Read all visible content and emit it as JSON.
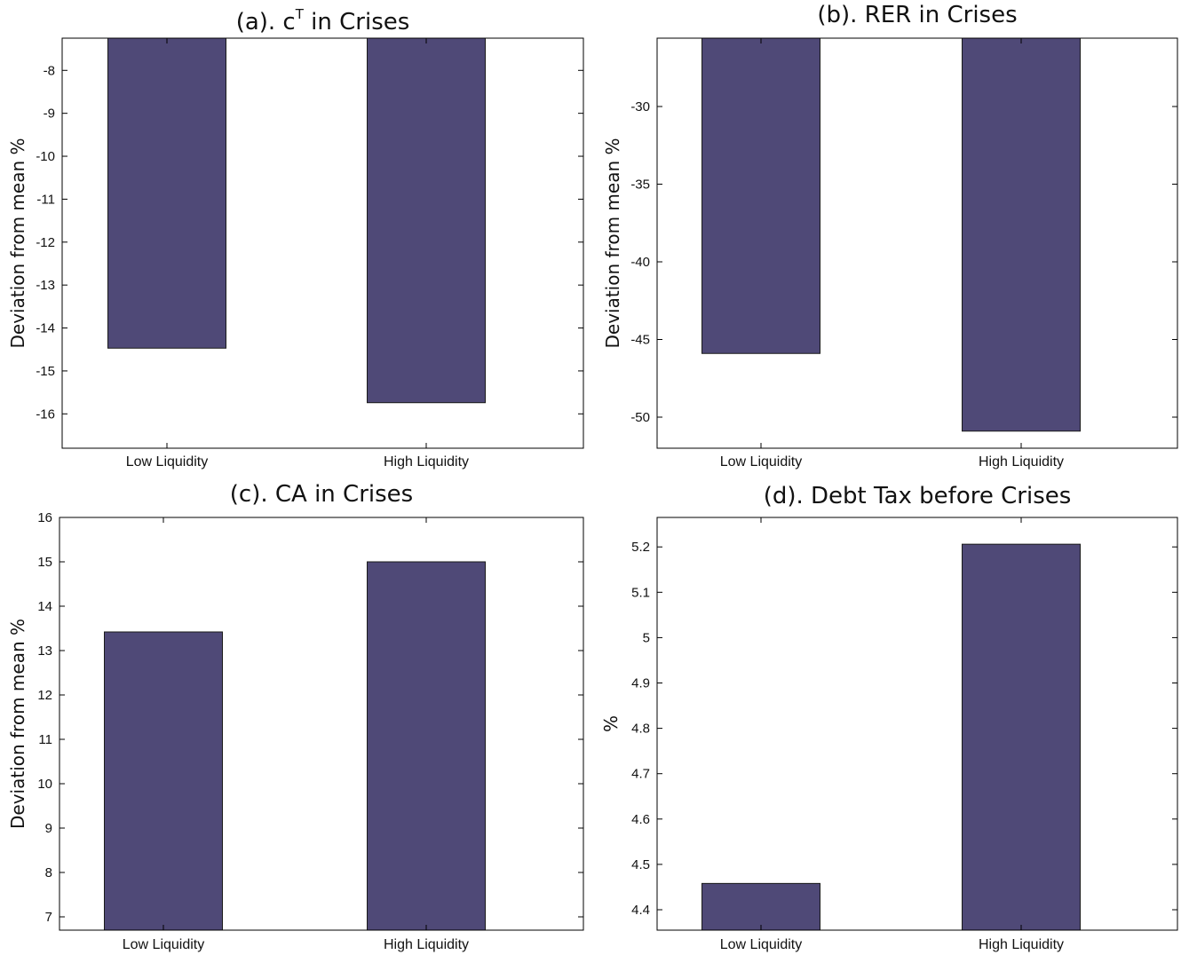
{
  "colors": {
    "bar": "#4f4977",
    "bar_edge": "#1a1a1a"
  },
  "chart_data": [
    {
      "type": "bar",
      "title": "(a). c",
      "title_superscript": "T",
      "title_suffix": " in Crises",
      "ylabel": "Deviation from mean %",
      "categories": [
        "Low Liquidity",
        "High Liquidity"
      ],
      "values": [
        -14.47,
        -15.74
      ],
      "ylim": [
        -16.8,
        -7.25
      ],
      "yticks": [
        -16,
        -15,
        -14,
        -13,
        -12,
        -11,
        -10,
        -9,
        -8
      ],
      "ytick_labels": [
        "-16",
        "-15",
        "-14",
        "-13",
        "-12",
        "-11",
        "-10",
        "-9",
        "-8"
      ],
      "grid": false
    },
    {
      "type": "bar",
      "title": "(b). RER in Crises",
      "ylabel": "Deviation from mean %",
      "categories": [
        "Low Liquidity",
        "High Liquidity"
      ],
      "values": [
        -45.9,
        -50.9
      ],
      "ylim": [
        -52,
        -25.6
      ],
      "yticks": [
        -50,
        -45,
        -40,
        -35,
        -30
      ],
      "ytick_labels": [
        "-50",
        "-45",
        "-40",
        "-35",
        "-30"
      ],
      "grid": false
    },
    {
      "type": "bar",
      "title": "(c). CA in Crises",
      "ylabel": "Deviation from mean %",
      "categories": [
        "Low Liquidity",
        "High Liquidity"
      ],
      "values": [
        13.42,
        15.0
      ],
      "ylim": [
        6.7,
        16
      ],
      "yticks": [
        7,
        8,
        9,
        10,
        11,
        12,
        13,
        14,
        15,
        16
      ],
      "ytick_labels": [
        "7",
        "8",
        "9",
        "10",
        "11",
        "12",
        "13",
        "14",
        "15",
        "16"
      ],
      "grid": false
    },
    {
      "type": "bar",
      "title": "(d). Debt Tax before Crises",
      "ylabel": "%",
      "categories": [
        "Low Liquidity",
        "High Liquidity"
      ],
      "values": [
        4.458,
        5.206
      ],
      "ylim": [
        4.355,
        5.265
      ],
      "yticks": [
        4.4,
        4.5,
        4.6,
        4.7,
        4.8,
        4.9,
        5.0,
        5.1,
        5.2
      ],
      "ytick_labels": [
        "4.4",
        "4.5",
        "4.6",
        "4.7",
        "4.8",
        "4.9",
        "5",
        "5.1",
        "5.2"
      ],
      "grid": false
    }
  ]
}
